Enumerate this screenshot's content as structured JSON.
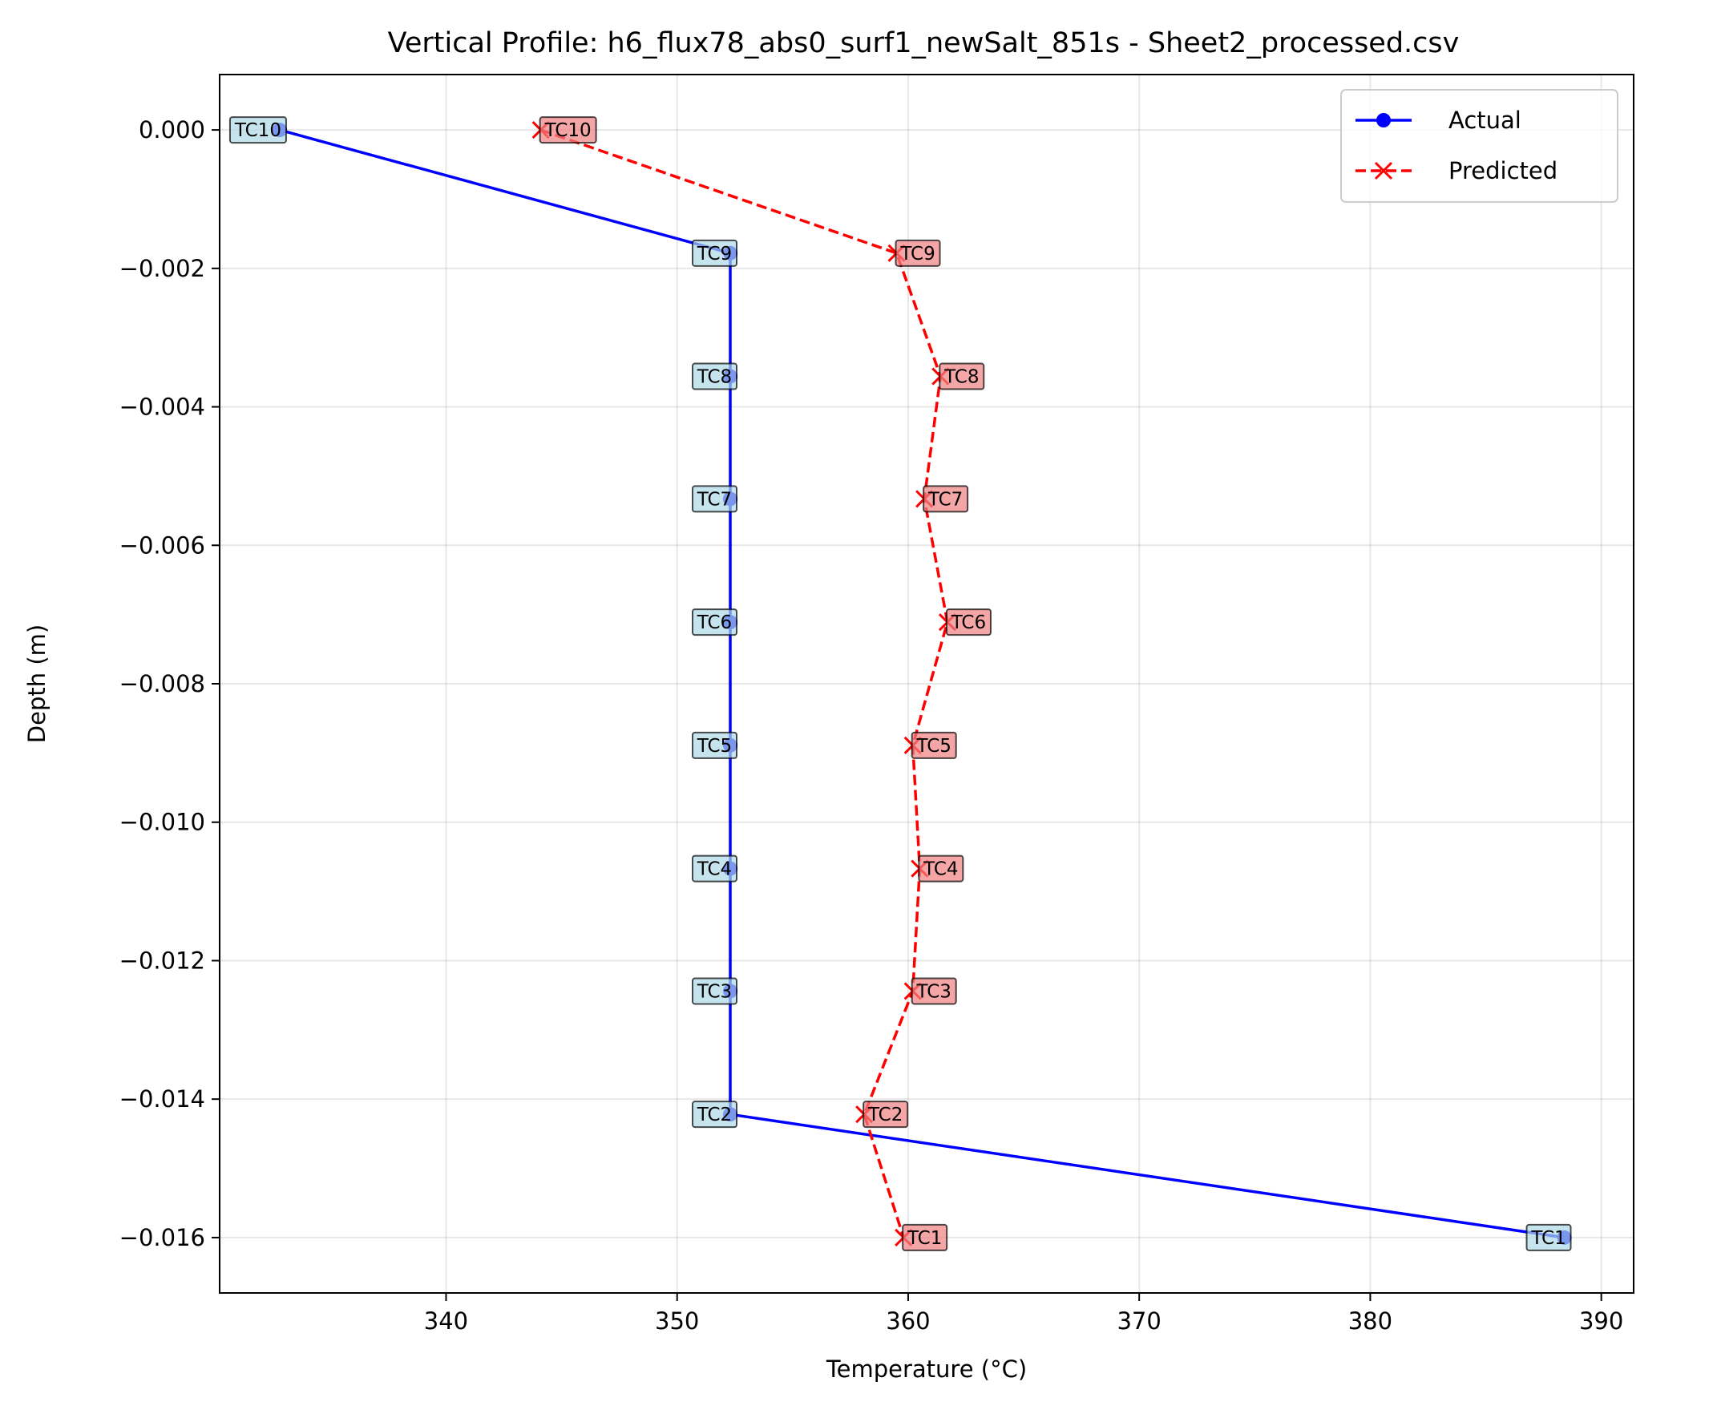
{
  "chart_data": {
    "type": "line",
    "title": "Vertical Profile: h6_flux78_abs0_surf1_newSalt_851s - Sheet2_processed.csv",
    "xlabel": "Temperature (°C)",
    "ylabel": "Depth (m)",
    "xlim": [
      330.2,
      391.4
    ],
    "ylim": [
      -0.0168,
      0.0008
    ],
    "xticks": [
      340,
      350,
      360,
      370,
      380,
      390
    ],
    "xtick_labels": [
      "340",
      "350",
      "360",
      "370",
      "380",
      "390"
    ],
    "yticks": [
      0.0,
      -0.002,
      -0.004,
      -0.006,
      -0.008,
      -0.01,
      -0.012,
      -0.014,
      -0.016
    ],
    "ytick_labels": [
      "0.000",
      "−0.002",
      "−0.004",
      "−0.006",
      "−0.008",
      "−0.010",
      "−0.012",
      "−0.014",
      "−0.016"
    ],
    "grid": true,
    "legend_position": "top-right",
    "series": [
      {
        "name": "Actual",
        "color": "#0000ff",
        "marker": "circle",
        "linestyle": "solid",
        "label_bg": "#add8e6",
        "points": [
          {
            "label": "TC10",
            "x": 332.8,
            "y": 0.0
          },
          {
            "label": "TC9",
            "x": 352.3,
            "y": -0.00178
          },
          {
            "label": "TC8",
            "x": 352.3,
            "y": -0.00356
          },
          {
            "label": "TC7",
            "x": 352.3,
            "y": -0.00533
          },
          {
            "label": "TC6",
            "x": 352.3,
            "y": -0.00711
          },
          {
            "label": "TC5",
            "x": 352.3,
            "y": -0.00889
          },
          {
            "label": "TC4",
            "x": 352.3,
            "y": -0.01067
          },
          {
            "label": "TC3",
            "x": 352.3,
            "y": -0.01244
          },
          {
            "label": "TC2",
            "x": 352.3,
            "y": -0.01422
          },
          {
            "label": "TC1",
            "x": 388.4,
            "y": -0.016
          }
        ]
      },
      {
        "name": "Predicted",
        "color": "#ff0000",
        "marker": "x",
        "linestyle": "dashed",
        "label_bg": "#f08080",
        "points": [
          {
            "label": "TC10",
            "x": 344.1,
            "y": 0.0
          },
          {
            "label": "TC9",
            "x": 359.5,
            "y": -0.00178
          },
          {
            "label": "TC8",
            "x": 361.4,
            "y": -0.00356
          },
          {
            "label": "TC7",
            "x": 360.7,
            "y": -0.00533
          },
          {
            "label": "TC6",
            "x": 361.7,
            "y": -0.00711
          },
          {
            "label": "TC5",
            "x": 360.2,
            "y": -0.00889
          },
          {
            "label": "TC4",
            "x": 360.5,
            "y": -0.01067
          },
          {
            "label": "TC3",
            "x": 360.2,
            "y": -0.01244
          },
          {
            "label": "TC2",
            "x": 358.1,
            "y": -0.01422
          },
          {
            "label": "TC1",
            "x": 359.8,
            "y": -0.016
          }
        ]
      }
    ]
  }
}
